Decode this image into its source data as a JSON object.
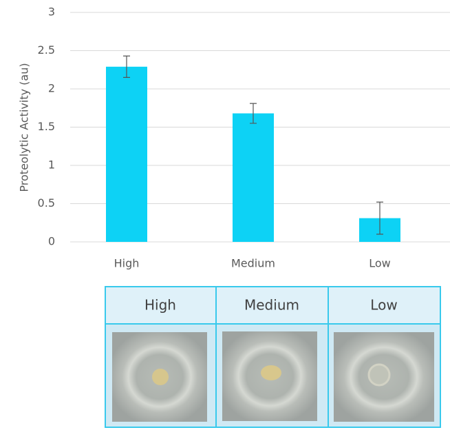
{
  "chart_data": {
    "type": "bar",
    "y_label": "Proteolytic Activity (au)",
    "categories": [
      "High",
      "Medium",
      "Low"
    ],
    "values": [
      2.29,
      1.68,
      0.31
    ],
    "errors": [
      0.14,
      0.13,
      0.21
    ],
    "color": "#0dd2f5",
    "ylim": [
      0,
      3
    ],
    "yticks": [
      0,
      0.5,
      1,
      1.5,
      2,
      2.5,
      3
    ],
    "grid": true
  },
  "table": {
    "headers": [
      "High",
      "Medium",
      "Low"
    ]
  }
}
